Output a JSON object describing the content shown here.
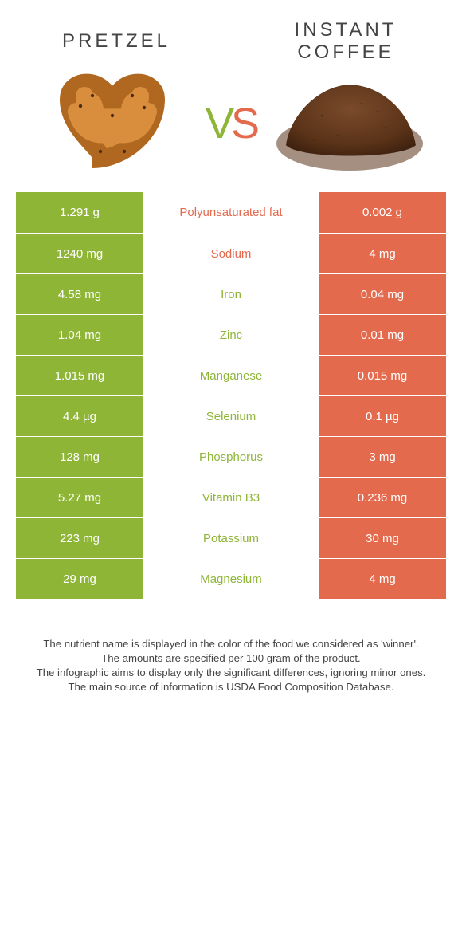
{
  "colors": {
    "left": "#8fb537",
    "right": "#e46a4e",
    "background": "#ffffff",
    "text": "#444"
  },
  "header": {
    "left_title": "Pretzel",
    "right_title": "Instant coffee",
    "vs_left_char": "V",
    "vs_right_char": "S"
  },
  "table": {
    "rows": [
      {
        "nutrient": "Polyunsaturated fat",
        "left": "1.291 g",
        "right": "0.002 g",
        "winner": "right"
      },
      {
        "nutrient": "Sodium",
        "left": "1240 mg",
        "right": "4 mg",
        "winner": "right"
      },
      {
        "nutrient": "Iron",
        "left": "4.58 mg",
        "right": "0.04 mg",
        "winner": "left"
      },
      {
        "nutrient": "Zinc",
        "left": "1.04 mg",
        "right": "0.01 mg",
        "winner": "left"
      },
      {
        "nutrient": "Manganese",
        "left": "1.015 mg",
        "right": "0.015 mg",
        "winner": "left"
      },
      {
        "nutrient": "Selenium",
        "left": "4.4 µg",
        "right": "0.1 µg",
        "winner": "left"
      },
      {
        "nutrient": "Phosphorus",
        "left": "128 mg",
        "right": "3 mg",
        "winner": "left"
      },
      {
        "nutrient": "Vitamin B3",
        "left": "5.27 mg",
        "right": "0.236 mg",
        "winner": "left"
      },
      {
        "nutrient": "Potassium",
        "left": "223 mg",
        "right": "30 mg",
        "winner": "left"
      },
      {
        "nutrient": "Magnesium",
        "left": "29 mg",
        "right": "4 mg",
        "winner": "left"
      }
    ]
  },
  "footnotes": {
    "line1": "The nutrient name is displayed in the color of the food we considered as 'winner'.",
    "line2": "The amounts are specified per 100 gram of the product.",
    "line3": "The infographic aims to display only the significant differences, ignoring minor ones.",
    "line4": "The main source of information is USDA Food Composition Database."
  }
}
